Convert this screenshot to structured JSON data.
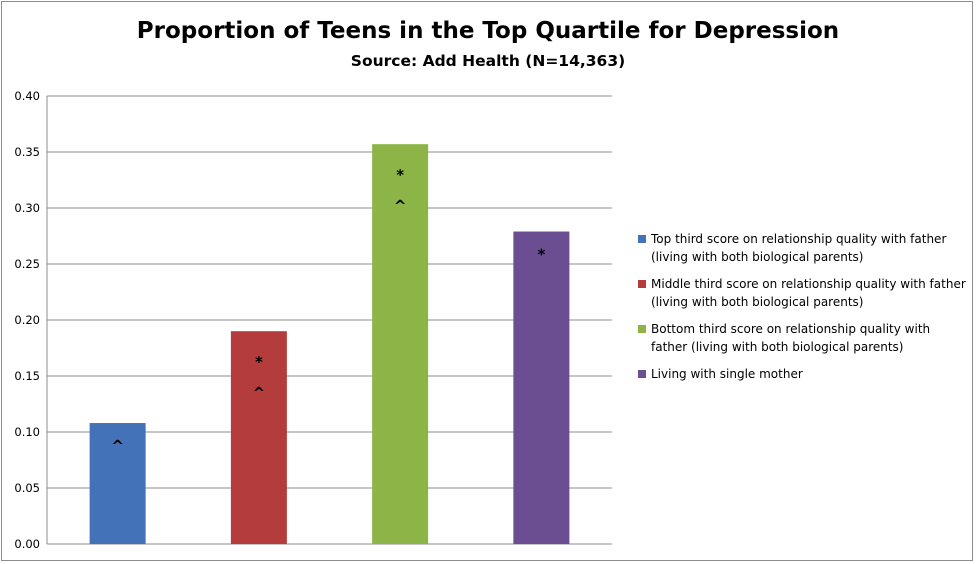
{
  "chart_data": {
    "type": "bar",
    "title": "Proportion of Teens in the Top Quartile for Depression",
    "subtitle": "Source: Add Health (N=14,363)",
    "ylim": [
      0,
      0.4
    ],
    "yticks": [
      "0.00",
      "0.05",
      "0.10",
      "0.15",
      "0.20",
      "0.25",
      "0.30",
      "0.35",
      "0.40"
    ],
    "grid": true,
    "legend_position": "right",
    "series": [
      {
        "name": "Top third score on relationship quality with father (living with both biological parents)",
        "value": 0.108,
        "color": "#4472b8",
        "markers": [
          "^"
        ]
      },
      {
        "name": "Middle third score on relationship quality with father (living with both biological parents)",
        "value": 0.19,
        "color": "#b43c3c",
        "markers": [
          "*",
          "^"
        ]
      },
      {
        "name": "Bottom third score on relationship quality with father (living with both biological parents)",
        "value": 0.357,
        "color": "#8db447",
        "markers": [
          "*",
          "^"
        ]
      },
      {
        "name": "Living with single mother",
        "value": 0.279,
        "color": "#6b4d92",
        "markers": [
          "*"
        ]
      }
    ]
  }
}
